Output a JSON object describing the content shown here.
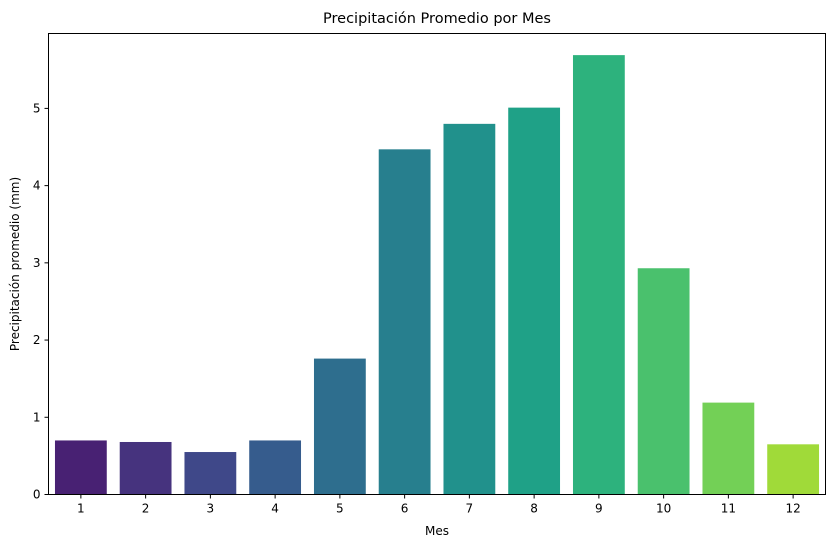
{
  "chart_data": {
    "type": "bar",
    "title": "Precipitación Promedio por Mes",
    "xlabel": "Mes",
    "ylabel": "Precipitación promedio (mm)",
    "categories": [
      "1",
      "2",
      "3",
      "4",
      "5",
      "6",
      "7",
      "8",
      "9",
      "10",
      "11",
      "12"
    ],
    "values": [
      0.7,
      0.68,
      0.55,
      0.7,
      1.76,
      4.47,
      4.8,
      5.01,
      5.69,
      2.93,
      1.19,
      0.65
    ],
    "colors": [
      "#482173",
      "#46337e",
      "#3f4889",
      "#365c8d",
      "#2e6e8e",
      "#277f8e",
      "#21918c",
      "#1fa187",
      "#2db27d",
      "#4ac16d",
      "#73d056",
      "#a0da39"
    ],
    "ylim": [
      0,
      5.97
    ],
    "yticks": [
      0,
      1,
      2,
      3,
      4,
      5
    ],
    "grid": false,
    "legend": false
  }
}
